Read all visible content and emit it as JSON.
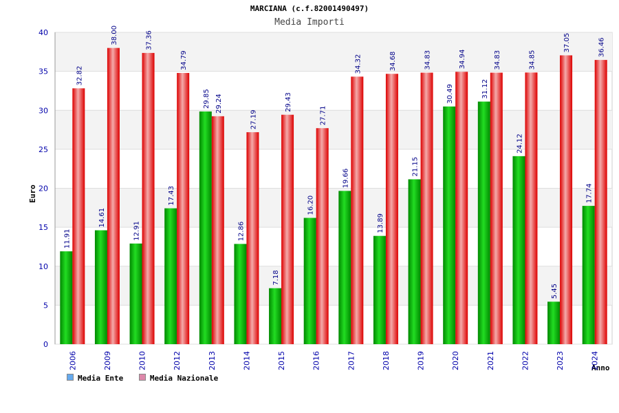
{
  "chart_data": {
    "type": "bar",
    "title": "MARCIANA (c.f.82001490497)",
    "subtitle": "Media Importi",
    "xlabel": "Anno",
    "ylabel": "Euro",
    "ylim": [
      0,
      40
    ],
    "yticks": [
      0,
      5,
      10,
      15,
      20,
      25,
      30,
      35,
      40
    ],
    "grid": true,
    "legend_position": "bottom-left",
    "categories": [
      "2006",
      "2009",
      "2010",
      "2012",
      "2013",
      "2014",
      "2015",
      "2016",
      "2017",
      "2018",
      "2019",
      "2020",
      "2021",
      "2022",
      "2023",
      "2024"
    ],
    "series": [
      {
        "name": "Media Ente",
        "color": "#00bb00",
        "legend_color": "#66aaee",
        "values": [
          11.91,
          14.61,
          12.91,
          17.43,
          29.85,
          12.86,
          7.18,
          16.2,
          19.66,
          13.89,
          21.15,
          30.49,
          31.12,
          24.12,
          5.45,
          17.74
        ],
        "labels": [
          "11.91",
          "14.61",
          "12.91",
          "17.43",
          "29.85",
          "12.86",
          "7.18",
          "16.20",
          "19.66",
          "13.89",
          "21.15",
          "30.49",
          "31.12",
          "24.12",
          "5.45",
          "17.74"
        ]
      },
      {
        "name": "Media Nazionale",
        "color": "#ee0000",
        "legend_color": "#dd88aa",
        "values": [
          32.82,
          38.0,
          37.36,
          34.79,
          29.24,
          27.19,
          29.43,
          27.71,
          34.32,
          34.68,
          34.83,
          34.94,
          34.83,
          34.85,
          37.05,
          36.46
        ],
        "labels": [
          "32.82",
          "38.00",
          "37.36",
          "34.79",
          "29.24",
          "27.19",
          "29.43",
          "27.71",
          "34.32",
          "34.68",
          "34.83",
          "34.94",
          "34.83",
          "34.85",
          "37.05",
          "36.46"
        ]
      }
    ]
  }
}
